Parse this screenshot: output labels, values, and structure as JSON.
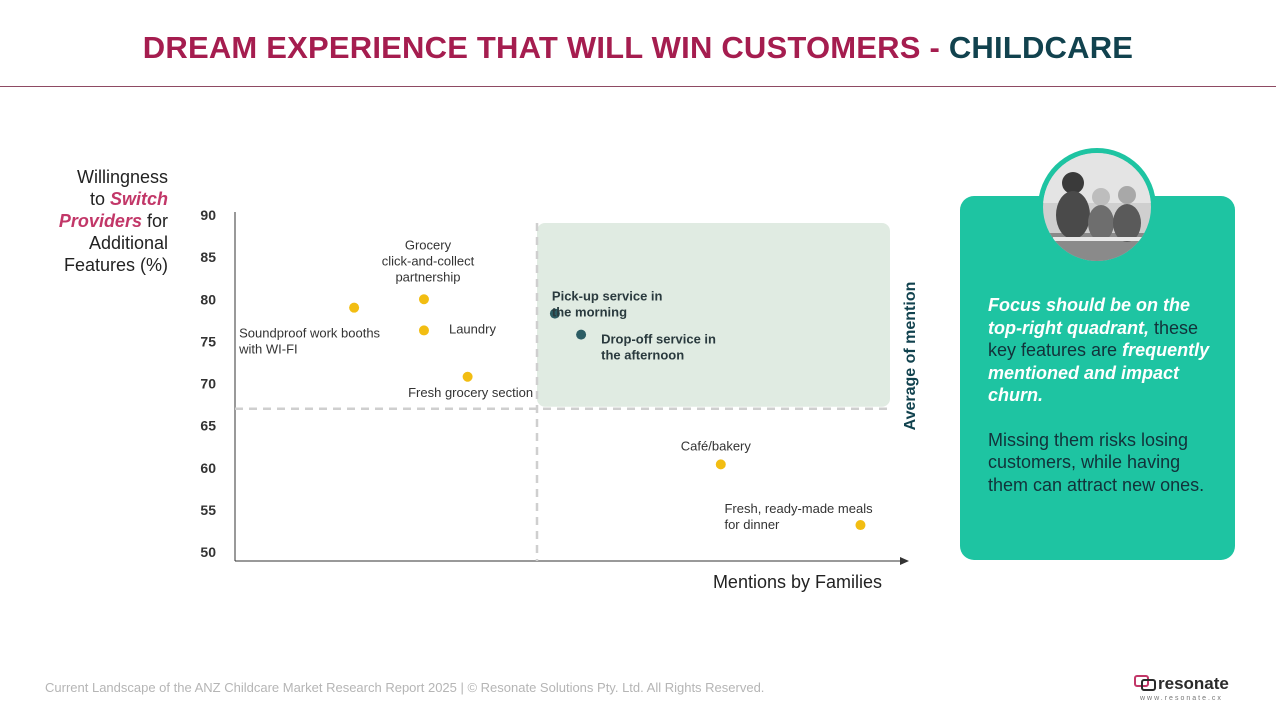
{
  "title": {
    "main": "DREAM EXPERIENCE THAT WILL WIN CUSTOMERS -",
    "accent": "CHILDCARE"
  },
  "y_axis_label": {
    "line1": "Willingness",
    "pre": "to",
    "em1": "Switch",
    "em2": "Providers",
    "post": "for",
    "line4": "Additional",
    "line5": "Features (%)"
  },
  "x_axis_label": "Mentions by Families",
  "quadrant_label": "Average of mention",
  "chart_data": {
    "type": "scatter",
    "title": "",
    "xlabel": "Mentions by Families",
    "ylabel": "Willingness to Switch Providers for Additional Features (%)",
    "ylim": [
      50,
      90
    ],
    "yticks": [
      90,
      85,
      80,
      75,
      70,
      65,
      60,
      55,
      50
    ],
    "x_tick_labels_shown": false,
    "grid": false,
    "average_threshold_y": 67,
    "highlight_quadrant": "top-right",
    "points": [
      {
        "label": "Soundproof work booths with WI-FI",
        "lines": [
          "Soundproof work booths",
          "with WI-FI"
        ],
        "x": 0.43,
        "y": 79,
        "color": "#f2bd12",
        "bold": false
      },
      {
        "label": "Grocery click-and-collect partnership",
        "lines": [
          "Grocery",
          "click-and-collect",
          "partnership"
        ],
        "x": 0.67,
        "y": 80,
        "color": "#f2bd12",
        "bold": false
      },
      {
        "label": "Laundry",
        "lines": [
          "Laundry"
        ],
        "x": 0.67,
        "y": 76.3,
        "color": "#f2bd12",
        "bold": false
      },
      {
        "label": "Fresh grocery section",
        "lines": [
          "Fresh grocery section"
        ],
        "x": 0.82,
        "y": 70.8,
        "color": "#f2bd12",
        "bold": false
      },
      {
        "label": "Pick-up service in the morning",
        "lines": [
          "Pick-up service in",
          "the morning"
        ],
        "x": 1.12,
        "y": 78.3,
        "color": "#2c5d64",
        "bold": true
      },
      {
        "label": "Drop-off service in the afternoon",
        "lines": [
          "Drop-off service in",
          "the afternoon"
        ],
        "x": 1.21,
        "y": 75.8,
        "color": "#2c5d64",
        "bold": true
      },
      {
        "label": "Café/bakery",
        "lines": [
          "Café/bakery"
        ],
        "x": 1.69,
        "y": 60.4,
        "color": "#f2bd12",
        "bold": false
      },
      {
        "label": "Fresh, ready-made meals for dinner",
        "lines": [
          "Fresh, ready-made meals",
          "for dinner"
        ],
        "x": 2.17,
        "y": 53.2,
        "color": "#f2bd12",
        "bold": false
      }
    ]
  },
  "callout": {
    "strong1": "Focus should be on the top-right quadrant,",
    "plain1": " these key features are ",
    "strong2": "frequently mentioned and impact churn.",
    "plain2": "Missing them risks losing customers, while having them can attract new ones."
  },
  "footer": "Current Landscape of the ANZ Childcare Market Research Report 2025 | © Resonate Solutions Pty. Ltd. All Rights Reserved.",
  "brand": {
    "name": "resonate",
    "url": "www.resonate.cx"
  },
  "colors": {
    "title": "#a51d4f",
    "title_accent": "#11424e",
    "highlight": "#e0ebe2",
    "dot_default": "#f2bd12",
    "dot_key": "#2c5d64",
    "card": "#1ec4a2"
  }
}
